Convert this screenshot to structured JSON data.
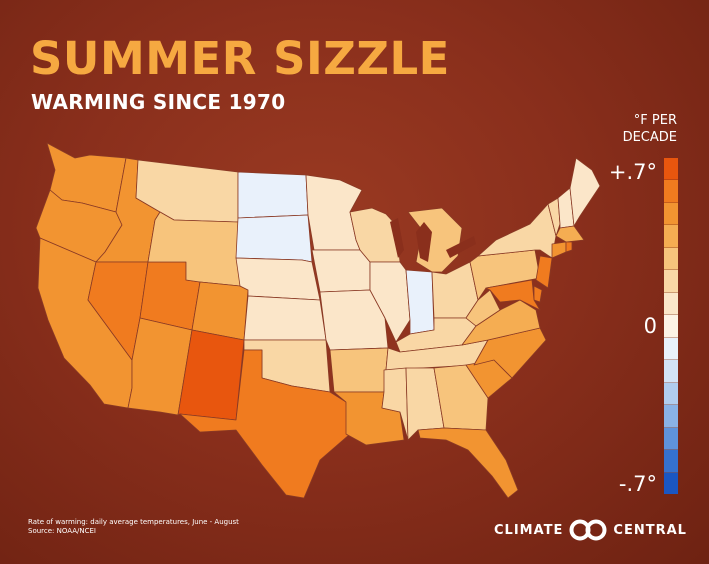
{
  "header": {
    "title": "SUMMER SIZZLE",
    "subtitle": "WARMING SINCE 1970"
  },
  "legend": {
    "unit_line1": "°F PER",
    "unit_line2": "DECADE",
    "max_label": "+.7°",
    "mid_label": "0",
    "min_label": "-.7°",
    "range": [
      -0.7,
      0.7
    ],
    "colors": [
      "#e8560e",
      "#f07b1f",
      "#f29431",
      "#f5ad52",
      "#f7c47c",
      "#f9d7a5",
      "#fbe6c9",
      "#fdf3e6",
      "#e9f1fb",
      "#d3e4f7",
      "#b1cdef",
      "#8ab2e6",
      "#5f93db",
      "#3571cf",
      "#1a56c2"
    ]
  },
  "states": [
    {
      "name": "Washington",
      "warming": 0.5
    },
    {
      "name": "Oregon",
      "warming": 0.45
    },
    {
      "name": "California",
      "warming": 0.45
    },
    {
      "name": "Idaho",
      "warming": 0.5
    },
    {
      "name": "Nevada",
      "warming": 0.6
    },
    {
      "name": "Utah",
      "warming": 0.6
    },
    {
      "name": "Arizona",
      "warming": 0.45
    },
    {
      "name": "Montana",
      "warming": 0.2
    },
    {
      "name": "Wyoming",
      "warming": 0.3
    },
    {
      "name": "Colorado",
      "warming": 0.45
    },
    {
      "name": "New Mexico",
      "warming": 0.65
    },
    {
      "name": "North Dakota",
      "warming": -0.1
    },
    {
      "name": "South Dakota",
      "warming": -0.05
    },
    {
      "name": "Nebraska",
      "warming": 0.05
    },
    {
      "name": "Kansas",
      "warming": 0.15
    },
    {
      "name": "Oklahoma",
      "warming": 0.25
    },
    {
      "name": "Texas",
      "warming": 0.55
    },
    {
      "name": "Minnesota",
      "warming": 0.1
    },
    {
      "name": "Iowa",
      "warming": 0.1
    },
    {
      "name": "Missouri",
      "warming": 0.1
    },
    {
      "name": "Arkansas",
      "warming": 0.3
    },
    {
      "name": "Louisiana",
      "warming": 0.5
    },
    {
      "name": "Wisconsin",
      "warming": 0.2
    },
    {
      "name": "Illinois",
      "warming": 0.1
    },
    {
      "name": "Indiana",
      "warming": -0.05
    },
    {
      "name": "Michigan",
      "warming": 0.3
    },
    {
      "name": "Ohio",
      "warming": 0.2
    },
    {
      "name": "Kentucky",
      "warming": 0.25
    },
    {
      "name": "Tennessee",
      "warming": 0.25
    },
    {
      "name": "Mississippi",
      "warming": 0.25
    },
    {
      "name": "Alabama",
      "warming": 0.2
    },
    {
      "name": "Georgia",
      "warming": 0.3
    },
    {
      "name": "Florida",
      "warming": 0.45
    },
    {
      "name": "South Carolina",
      "warming": 0.5
    },
    {
      "name": "North Carolina",
      "warming": 0.45
    },
    {
      "name": "Virginia",
      "warming": 0.4
    },
    {
      "name": "West Virginia",
      "warming": 0.3
    },
    {
      "name": "Pennsylvania",
      "warming": 0.3
    },
    {
      "name": "New York",
      "warming": 0.2
    },
    {
      "name": "Vermont",
      "warming": 0.2
    },
    {
      "name": "New Hampshire",
      "warming": 0.15
    },
    {
      "name": "Maine",
      "warming": 0.15
    },
    {
      "name": "Massachusetts",
      "warming": 0.4
    },
    {
      "name": "Connecticut",
      "warming": 0.5
    },
    {
      "name": "Rhode Island",
      "warming": 0.55
    },
    {
      "name": "New Jersey",
      "warming": 0.55
    },
    {
      "name": "Delaware",
      "warming": 0.6
    },
    {
      "name": "Maryland",
      "warming": 0.6
    }
  ],
  "footnote": {
    "line1": "Rate of warming: daily average temperatures, June - August",
    "line2": "Source: NOAA/NCEI"
  },
  "logo": {
    "left_text": "CLIMATE",
    "right_text": "CENTRAL"
  }
}
